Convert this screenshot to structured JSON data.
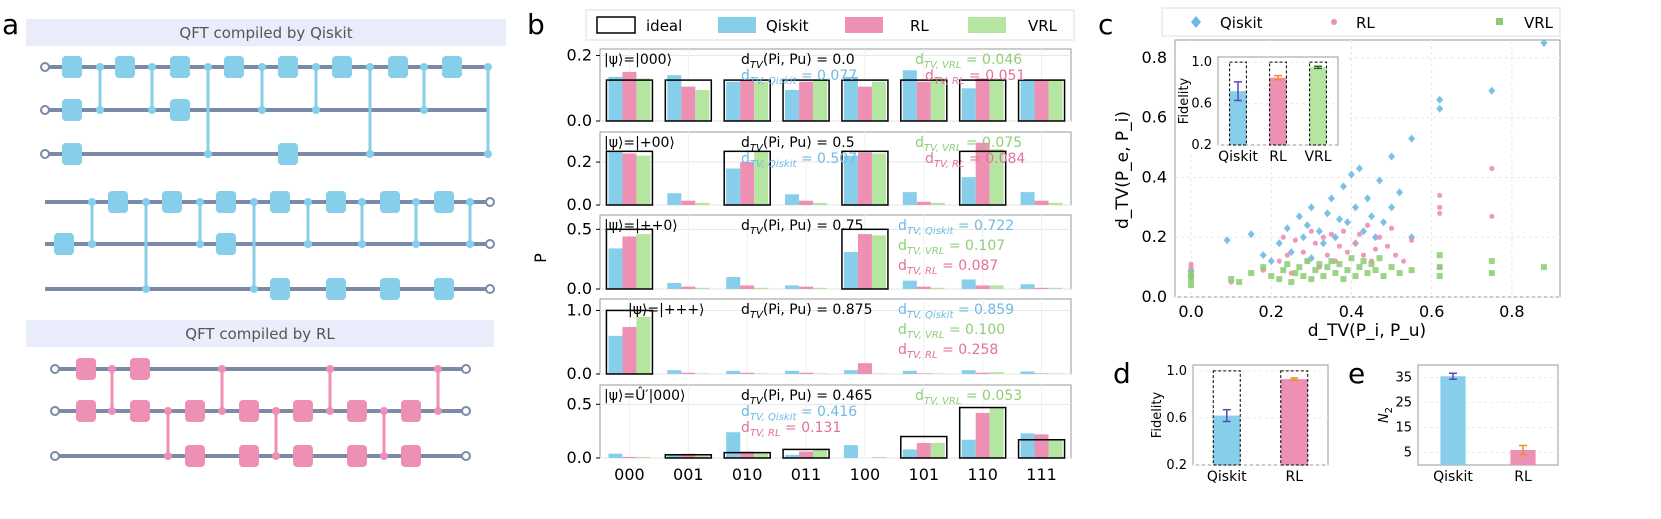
{
  "colors": {
    "qiskit": "#87ceeb",
    "qiskit_point": "#6fb9e2",
    "rl": "#ee8fb4",
    "vrl": "#b5e6a1",
    "vrl_point": "#88cc70",
    "wire": "#7a8aa8",
    "qiskit_band": "#e8ecfb",
    "rl_band": "#eaedfb"
  },
  "panel_a": {
    "letter": "a",
    "title_qiskit": "QFT compiled by Qiskit",
    "title_rl": "QFT compiled by RL"
  },
  "panel_b": {
    "letter": "b",
    "ylabel": "P",
    "categories": [
      "000",
      "001",
      "010",
      "011",
      "100",
      "101",
      "110",
      "111"
    ],
    "legend": [
      "ideal",
      "Qiskit",
      "RL",
      "VRL"
    ],
    "subplots": [
      {
        "state": "|ψ⟩=|000⟩",
        "dtv_pu": "d_TV(P_i, P_u) = 0.0",
        "dtv_qiskit": "d_TV,Qiskit = 0.077",
        "dtv_vrl": "d_TV,VRL = 0.046",
        "dtv_rl": "d_TV,RL = 0.051",
        "ymax": 0.22,
        "yticks": [
          0.0,
          0.2
        ],
        "ideal": [
          0.125,
          0.125,
          0.125,
          0.125,
          0.125,
          0.125,
          0.125,
          0.125
        ],
        "qiskit": [
          0.135,
          0.14,
          0.12,
          0.095,
          0.135,
          0.155,
          0.1,
          0.125
        ],
        "rl": [
          0.15,
          0.105,
          0.125,
          0.12,
          0.105,
          0.12,
          0.13,
          0.125
        ],
        "vrl": [
          0.13,
          0.095,
          0.12,
          0.125,
          0.12,
          0.13,
          0.125,
          0.125
        ]
      },
      {
        "state": "|ψ⟩=|+00⟩",
        "dtv_pu": "d_TV(P_i, P_u) = 0.5",
        "dtv_qiskit": "d_TV,Qiskit = 0.507",
        "dtv_vrl": "d_TV,VRL = 0.075",
        "dtv_rl": "d_TV,RL = 0.084",
        "ymax": 0.34,
        "yticks": [
          0.0,
          0.2
        ],
        "ideal": [
          0.25,
          0,
          0.25,
          0,
          0.25,
          0,
          0.25,
          0
        ],
        "qiskit": [
          0.25,
          0.055,
          0.17,
          0.05,
          0.23,
          0.06,
          0.13,
          0.06
        ],
        "rl": [
          0.24,
          0.02,
          0.2,
          0.02,
          0.245,
          0.015,
          0.29,
          0.02
        ],
        "vrl": [
          0.23,
          0.01,
          0.25,
          0.01,
          0.24,
          0.01,
          0.26,
          0.01
        ]
      },
      {
        "state": "|ψ⟩=|++0⟩",
        "dtv_pu": "d_TV(P_i, P_u) = 0.75",
        "dtv_qiskit": "d_TV,Qiskit = 0.722",
        "dtv_vrl": "d_TV,VRL = 0.107",
        "dtv_rl": "d_TV,RL = 0.087",
        "ymax": 0.62,
        "yticks": [
          0.0,
          0.5
        ],
        "ideal": [
          0.5,
          0,
          0,
          0,
          0.5,
          0,
          0,
          0
        ],
        "qiskit": [
          0.34,
          0.05,
          0.1,
          0.03,
          0.31,
          0.07,
          0.08,
          0.04
        ],
        "rl": [
          0.44,
          0.02,
          0.03,
          0.02,
          0.46,
          0.02,
          0.03,
          0.01
        ],
        "vrl": [
          0.46,
          0.01,
          0.01,
          0.01,
          0.45,
          0.01,
          0.03,
          0.01
        ]
      },
      {
        "state": "|ψ⟩=|+++⟩",
        "dtv_pu": "d_TV(P_i, P_u) = 0.875",
        "dtv_qiskit": "d_TV,Qiskit = 0.859",
        "dtv_vrl": "d_TV,VRL = 0.100",
        "dtv_rl": "d_TV,RL = 0.258",
        "ymax": 1.18,
        "yticks": [
          0.0,
          1.0
        ],
        "ideal": [
          1.0,
          0,
          0,
          0,
          0,
          0,
          0,
          0
        ],
        "qiskit": [
          0.6,
          0.06,
          0.05,
          0.05,
          0.06,
          0.05,
          0.06,
          0.04
        ],
        "rl": [
          0.74,
          0.02,
          0.02,
          0.02,
          0.17,
          0.01,
          0.02,
          0.01
        ],
        "vrl": [
          0.9,
          0.01,
          0.01,
          0.01,
          0.01,
          0.01,
          0.03,
          0.01
        ]
      },
      {
        "state": "|ψ⟩=Û′|000⟩",
        "dtv_pu": "d_TV(P_i, P_u) = 0.465",
        "dtv_qiskit": "d_TV,Qiskit = 0.416",
        "dtv_vrl": "d_TV,VRL = 0.053",
        "dtv_rl": "d_TV,RL = 0.131",
        "ymax": 0.68,
        "yticks": [
          0.0,
          0.5
        ],
        "ideal": [
          0,
          0.03,
          0.05,
          0.08,
          0.0,
          0.2,
          0.47,
          0.17
        ],
        "qiskit": [
          0.04,
          0.03,
          0.24,
          0.03,
          0.12,
          0.08,
          0.17,
          0.23
        ],
        "rl": [
          0.01,
          0.04,
          0.06,
          0.06,
          0.0,
          0.14,
          0.42,
          0.22
        ],
        "vrl": [
          0.01,
          0.02,
          0.05,
          0.08,
          0.01,
          0.14,
          0.47,
          0.17
        ]
      }
    ]
  },
  "chart_data": [
    {
      "type": "bar",
      "panel": "b",
      "categories": [
        "000",
        "001",
        "010",
        "011",
        "100",
        "101",
        "110",
        "111"
      ],
      "series_names": [
        "ideal",
        "Qiskit",
        "RL",
        "VRL"
      ],
      "ylabel": "P",
      "note": "five stacked bar subplots; values stored in panel_b.subplots"
    },
    {
      "type": "scatter",
      "panel": "c",
      "title": "",
      "xlabel": "d_TV(P_i, P_u)",
      "ylabel": "d_TV(P_e, P_i)",
      "xlim": [
        -0.04,
        0.92
      ],
      "ylim": [
        0.0,
        0.86
      ],
      "xticks": [
        0.0,
        0.2,
        0.4,
        0.6,
        0.8
      ],
      "yticks": [
        0.0,
        0.2,
        0.4,
        0.6,
        0.8
      ],
      "legend": [
        "Qiskit",
        "RL",
        "VRL"
      ],
      "series": [
        {
          "name": "Qiskit",
          "marker": "diamond",
          "points": [
            [
              0.0,
              0.09
            ],
            [
              0.0,
              0.07
            ],
            [
              0.09,
              0.19
            ],
            [
              0.15,
              0.21
            ],
            [
              0.18,
              0.14
            ],
            [
              0.2,
              0.12
            ],
            [
              0.22,
              0.18
            ],
            [
              0.24,
              0.23
            ],
            [
              0.25,
              0.15
            ],
            [
              0.27,
              0.27
            ],
            [
              0.28,
              0.2
            ],
            [
              0.29,
              0.24
            ],
            [
              0.3,
              0.3
            ],
            [
              0.3,
              0.13
            ],
            [
              0.32,
              0.22
            ],
            [
              0.33,
              0.18
            ],
            [
              0.34,
              0.28
            ],
            [
              0.35,
              0.33
            ],
            [
              0.36,
              0.2
            ],
            [
              0.37,
              0.26
            ],
            [
              0.38,
              0.37
            ],
            [
              0.39,
              0.25
            ],
            [
              0.4,
              0.41
            ],
            [
              0.41,
              0.18
            ],
            [
              0.41,
              0.3
            ],
            [
              0.42,
              0.43
            ],
            [
              0.43,
              0.22
            ],
            [
              0.44,
              0.33
            ],
            [
              0.45,
              0.27
            ],
            [
              0.46,
              0.2
            ],
            [
              0.47,
              0.39
            ],
            [
              0.48,
              0.25
            ],
            [
              0.5,
              0.47
            ],
            [
              0.5,
              0.3
            ],
            [
              0.52,
              0.35
            ],
            [
              0.55,
              0.53
            ],
            [
              0.55,
              0.2
            ],
            [
              0.62,
              0.66
            ],
            [
              0.62,
              0.63
            ],
            [
              0.75,
              0.69
            ],
            [
              0.88,
              0.85
            ]
          ]
        },
        {
          "name": "RL",
          "marker": "circle",
          "points": [
            [
              0.0,
              0.11
            ],
            [
              0.0,
              0.1
            ],
            [
              0.1,
              0.05
            ],
            [
              0.18,
              0.09
            ],
            [
              0.22,
              0.12
            ],
            [
              0.23,
              0.2
            ],
            [
              0.24,
              0.14
            ],
            [
              0.25,
              0.08
            ],
            [
              0.26,
              0.19
            ],
            [
              0.28,
              0.15
            ],
            [
              0.29,
              0.12
            ],
            [
              0.3,
              0.22
            ],
            [
              0.31,
              0.18
            ],
            [
              0.32,
              0.1
            ],
            [
              0.33,
              0.2
            ],
            [
              0.34,
              0.14
            ],
            [
              0.35,
              0.21
            ],
            [
              0.36,
              0.12
            ],
            [
              0.37,
              0.17
            ],
            [
              0.38,
              0.22
            ],
            [
              0.39,
              0.15
            ],
            [
              0.41,
              0.18
            ],
            [
              0.42,
              0.21
            ],
            [
              0.43,
              0.14
            ],
            [
              0.44,
              0.24
            ],
            [
              0.45,
              0.12
            ],
            [
              0.46,
              0.16
            ],
            [
              0.47,
              0.2
            ],
            [
              0.49,
              0.17
            ],
            [
              0.5,
              0.23
            ],
            [
              0.51,
              0.14
            ],
            [
              0.53,
              0.12
            ],
            [
              0.55,
              0.19
            ],
            [
              0.62,
              0.34
            ],
            [
              0.62,
              0.3
            ],
            [
              0.62,
              0.28
            ],
            [
              0.62,
              0.1
            ],
            [
              0.75,
              0.43
            ],
            [
              0.75,
              0.27
            ]
          ]
        },
        {
          "name": "VRL",
          "marker": "square",
          "points": [
            [
              0.0,
              0.08
            ],
            [
              0.0,
              0.06
            ],
            [
              0.0,
              0.04
            ],
            [
              0.1,
              0.06
            ],
            [
              0.12,
              0.05
            ],
            [
              0.15,
              0.08
            ],
            [
              0.18,
              0.1
            ],
            [
              0.2,
              0.07
            ],
            [
              0.22,
              0.06
            ],
            [
              0.23,
              0.09
            ],
            [
              0.24,
              0.11
            ],
            [
              0.25,
              0.05
            ],
            [
              0.26,
              0.08
            ],
            [
              0.27,
              0.1
            ],
            [
              0.28,
              0.07
            ],
            [
              0.29,
              0.12
            ],
            [
              0.3,
              0.06
            ],
            [
              0.31,
              0.09
            ],
            [
              0.32,
              0.11
            ],
            [
              0.33,
              0.07
            ],
            [
              0.34,
              0.1
            ],
            [
              0.35,
              0.12
            ],
            [
              0.36,
              0.08
            ],
            [
              0.37,
              0.11
            ],
            [
              0.38,
              0.06
            ],
            [
              0.39,
              0.09
            ],
            [
              0.4,
              0.13
            ],
            [
              0.41,
              0.07
            ],
            [
              0.42,
              0.1
            ],
            [
              0.43,
              0.12
            ],
            [
              0.44,
              0.08
            ],
            [
              0.45,
              0.11
            ],
            [
              0.46,
              0.09
            ],
            [
              0.47,
              0.13
            ],
            [
              0.48,
              0.07
            ],
            [
              0.5,
              0.1
            ],
            [
              0.52,
              0.08
            ],
            [
              0.55,
              0.09
            ],
            [
              0.62,
              0.14
            ],
            [
              0.62,
              0.1
            ],
            [
              0.62,
              0.07
            ],
            [
              0.75,
              0.12
            ],
            [
              0.75,
              0.08
            ],
            [
              0.88,
              0.1
            ]
          ]
        }
      ]
    },
    {
      "type": "bar",
      "panel": "c-inset",
      "ylabel": "Fidelity",
      "categories": [
        "Qiskit",
        "RL",
        "VRL"
      ],
      "values": [
        0.72,
        0.85,
        0.95
      ],
      "errors": [
        0.09,
        0.02,
        0.01
      ],
      "ideal": [
        1.0,
        1.0,
        1.0
      ],
      "ylim": [
        0.2,
        1.05
      ],
      "yticks": [
        0.2,
        0.6,
        1.0
      ]
    },
    {
      "type": "bar",
      "panel": "d",
      "ylabel": "Fidelity",
      "categories": [
        "Qiskit",
        "RL"
      ],
      "values": [
        0.62,
        0.93
      ],
      "errors": [
        0.05,
        0.01
      ],
      "ideal": [
        1.0,
        1.0
      ],
      "ylim": [
        0.2,
        1.05
      ],
      "yticks": [
        0.2,
        0.6,
        1.0
      ]
    },
    {
      "type": "bar",
      "panel": "e",
      "ylabel": "N_2",
      "categories": [
        "Qiskit",
        "RL"
      ],
      "values": [
        35.5,
        6.0
      ],
      "errors": [
        1.2,
        1.8
      ],
      "ylim": [
        0,
        40
      ],
      "yticks": [
        5,
        15,
        25,
        35
      ]
    }
  ],
  "panel_c": {
    "letter": "c"
  },
  "panel_d": {
    "letter": "d"
  },
  "panel_e": {
    "letter": "e"
  }
}
